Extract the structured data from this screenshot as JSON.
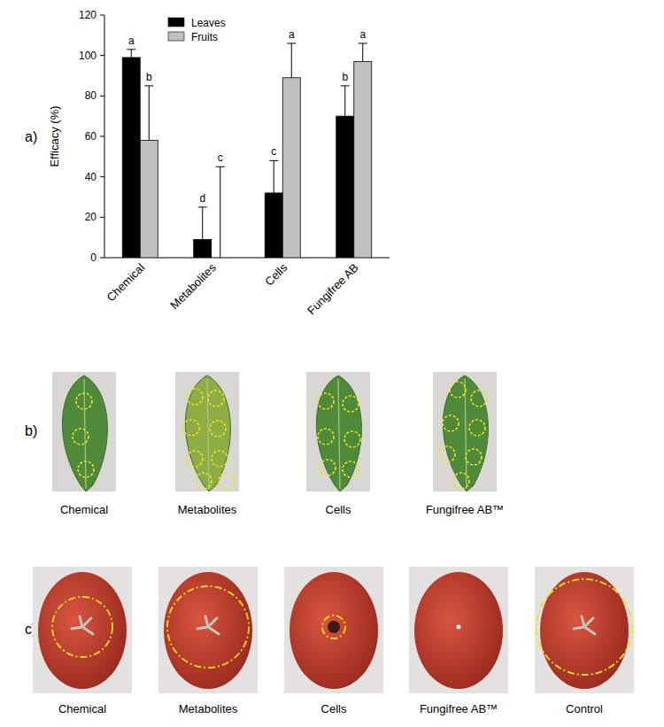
{
  "chart_data": {
    "type": "bar",
    "y_label": "Efficacy (%)",
    "categories": [
      "Chemical",
      "Metabolites",
      "Cells",
      "Fungifree AB"
    ],
    "series": [
      {
        "name": "Leaves",
        "color": "#000000",
        "values": [
          99,
          9,
          32,
          70
        ],
        "errors": [
          4,
          16,
          16,
          15
        ],
        "significance": [
          "a",
          "d",
          "c",
          "b"
        ]
      },
      {
        "name": "Fruits",
        "color": "#c0c0c0",
        "values": [
          58,
          0,
          89,
          97
        ],
        "errors": [
          27,
          45,
          17,
          9
        ],
        "significance": [
          "b",
          "c",
          "a",
          "a"
        ]
      }
    ],
    "ylim": [
      0,
      120
    ],
    "yticks": [
      0,
      20,
      40,
      60,
      80,
      100,
      120
    ],
    "legend": "top"
  },
  "panel_labels": [
    "a)",
    "b)",
    "c)"
  ],
  "leaf_photos": {
    "captions": [
      "Chemical",
      "Metabolites",
      "Cells",
      "Fungifree AB™"
    ]
  },
  "fruit_photos": {
    "captions": [
      "Chemical",
      "Metabolites",
      "Cells",
      "Fungifree AB™",
      "Control"
    ]
  }
}
